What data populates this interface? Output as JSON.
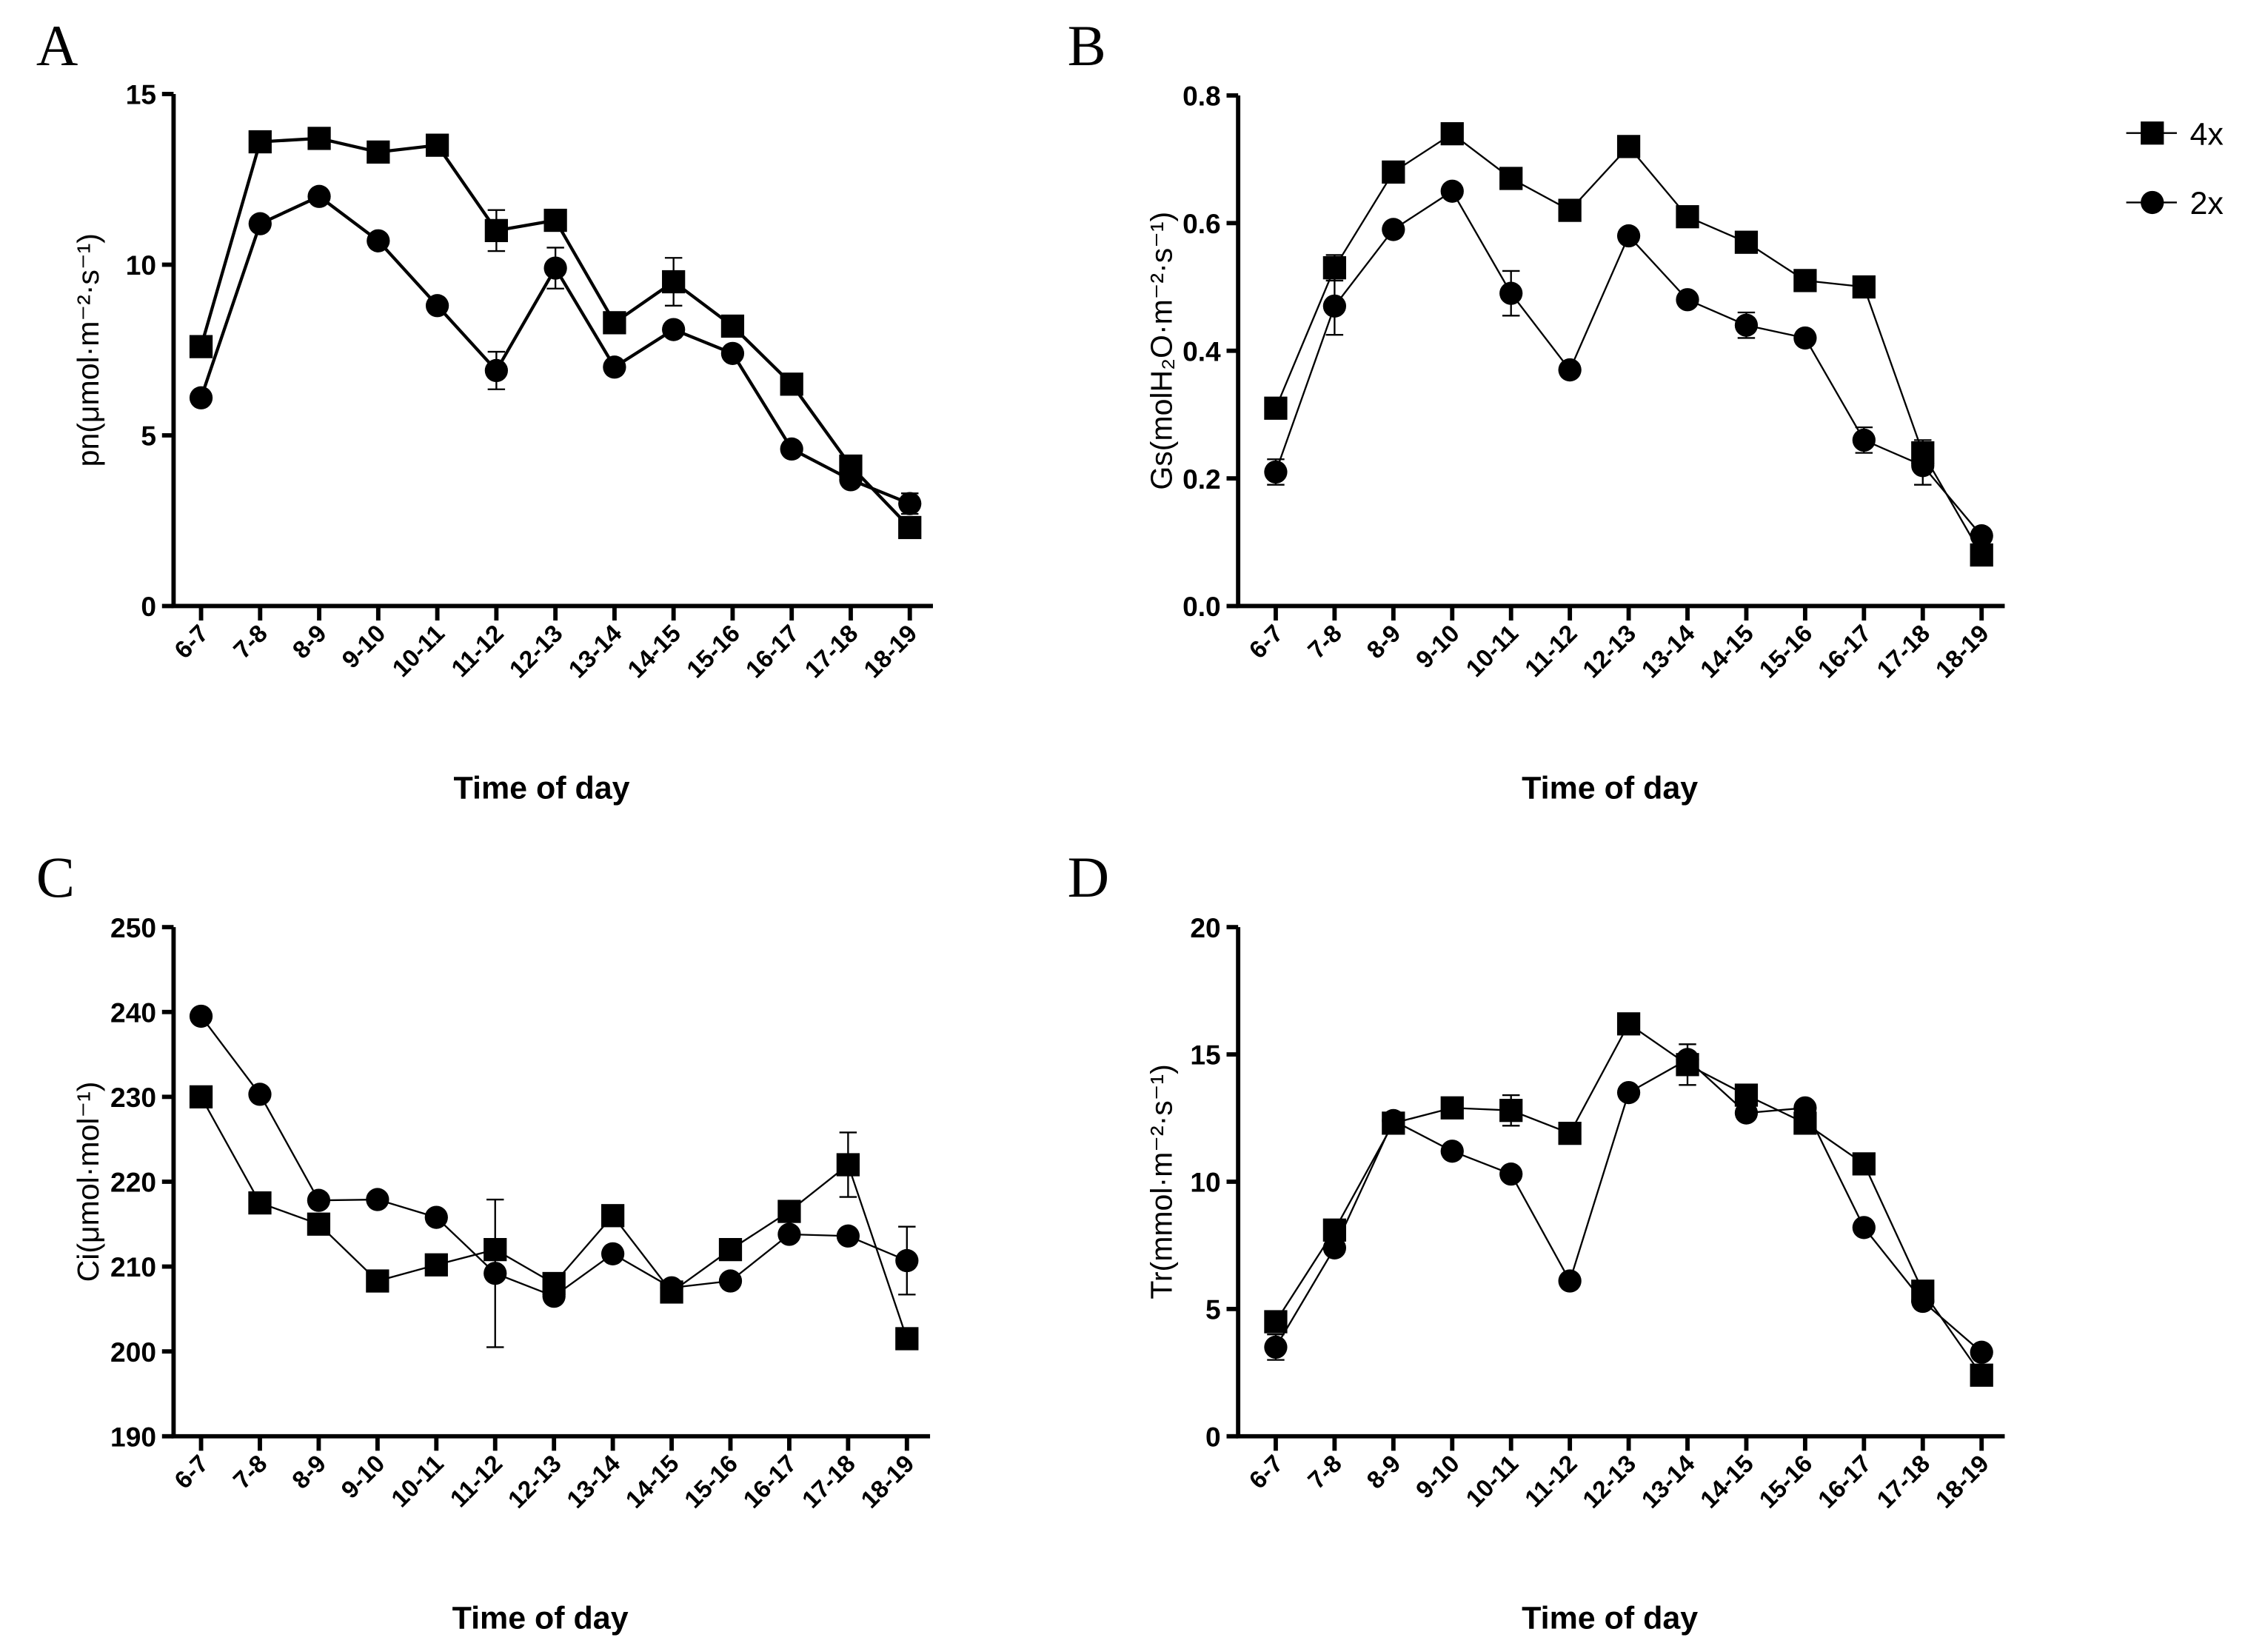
{
  "legend": [
    {
      "name": "4x",
      "marker": "square"
    },
    {
      "name": "2x",
      "marker": "circle"
    }
  ],
  "chart_data": [
    {
      "type": "line",
      "panel": "A",
      "title": "",
      "xlabel": "Time of day",
      "ylabel": "pn(μmol·m⁻²·s⁻¹)",
      "ylim": [
        0,
        15
      ],
      "yticks": [
        0,
        5,
        10,
        15
      ],
      "categories": [
        "6-7",
        "7-8",
        "8-9",
        "9-10",
        "10-11",
        "11-12",
        "12-13",
        "13-14",
        "14-15",
        "15-16",
        "16-17",
        "17-18",
        "18-19"
      ],
      "series": [
        {
          "name": "4x",
          "values": [
            7.6,
            13.6,
            13.7,
            13.3,
            13.5,
            11.0,
            11.3,
            8.3,
            9.5,
            8.2,
            6.5,
            4.1,
            2.3
          ],
          "errors": [
            0,
            0,
            0,
            0,
            0,
            0.6,
            0,
            0,
            0.7,
            0,
            0,
            0.3,
            0
          ]
        },
        {
          "name": "2x",
          "values": [
            6.1,
            11.2,
            12.0,
            10.7,
            8.8,
            6.9,
            9.9,
            7.0,
            8.1,
            7.4,
            4.6,
            3.7,
            3.0
          ],
          "errors": [
            0,
            0,
            0,
            0,
            0,
            0.55,
            0.6,
            0,
            0,
            0,
            0,
            0,
            0.3
          ]
        }
      ]
    },
    {
      "type": "line",
      "panel": "B",
      "title": "",
      "xlabel": "Time of day",
      "ylabel": "Gs(molH₂O·m⁻²·s⁻¹)",
      "ylim": [
        0,
        0.8
      ],
      "yticks": [
        "0.0",
        "0.2",
        "0.4",
        "0.6",
        "0.8"
      ],
      "categories": [
        "6-7",
        "7-8",
        "8-9",
        "9-10",
        "10-11",
        "11-12",
        "12-13",
        "13-14",
        "14-15",
        "15-16",
        "16-17",
        "17-18",
        "18-19"
      ],
      "series": [
        {
          "name": "4x",
          "values": [
            0.31,
            0.53,
            0.68,
            0.74,
            0.67,
            0.62,
            0.72,
            0.61,
            0.57,
            0.51,
            0.5,
            0.24,
            0.08
          ],
          "errors": [
            0,
            0.02,
            0,
            0,
            0,
            0,
            0,
            0,
            0,
            0,
            0,
            0.02,
            0
          ]
        },
        {
          "name": "2x",
          "values": [
            0.21,
            0.47,
            0.59,
            0.65,
            0.49,
            0.37,
            0.58,
            0.48,
            0.44,
            0.42,
            0.26,
            0.22,
            0.11
          ],
          "errors": [
            0.02,
            0.045,
            0,
            0,
            0.035,
            0,
            0,
            0,
            0.02,
            0,
            0.02,
            0.03,
            0
          ]
        }
      ]
    },
    {
      "type": "line",
      "panel": "C",
      "title": "",
      "xlabel": "Time of day",
      "ylabel": "Ci(μmol·mol⁻¹)",
      "ylim": [
        190,
        250
      ],
      "yticks": [
        190,
        200,
        210,
        220,
        230,
        240,
        250
      ],
      "categories": [
        "6-7",
        "7-8",
        "8-9",
        "9-10",
        "10-11",
        "11-12",
        "12-13",
        "13-14",
        "14-15",
        "15-16",
        "16-17",
        "17-18",
        "18-19"
      ],
      "series": [
        {
          "name": "4x",
          "values": [
            230,
            217.5,
            215,
            208.3,
            210.2,
            212,
            208,
            216,
            207,
            212,
            216.5,
            222,
            201.5
          ],
          "errors": [
            0,
            0,
            0,
            0,
            0,
            0,
            0,
            0,
            0,
            0,
            0,
            3.8,
            0
          ]
        },
        {
          "name": "2x",
          "values": [
            239.5,
            230.3,
            217.8,
            217.9,
            215.8,
            209.2,
            206.5,
            211.5,
            207.5,
            208.3,
            213.8,
            213.6,
            210.7
          ],
          "errors": [
            0,
            0,
            0,
            0,
            0,
            8.7,
            0,
            0,
            0,
            0,
            0,
            0,
            4
          ]
        }
      ]
    },
    {
      "type": "line",
      "panel": "D",
      "title": "",
      "xlabel": "Time of day",
      "ylabel": "Tr(mmol·m⁻²·s⁻¹)",
      "ylim": [
        0,
        20
      ],
      "yticks": [
        0,
        5,
        10,
        15,
        20
      ],
      "categories": [
        "6-7",
        "7-8",
        "8-9",
        "9-10",
        "10-11",
        "11-12",
        "12-13",
        "13-14",
        "14-15",
        "15-16",
        "16-17",
        "17-18",
        "18-19"
      ],
      "series": [
        {
          "name": "4x",
          "values": [
            4.5,
            8.1,
            12.3,
            12.9,
            12.8,
            11.9,
            16.2,
            14.6,
            13.4,
            12.3,
            10.7,
            5.7,
            2.4
          ],
          "errors": [
            0,
            0,
            0,
            0,
            0.6,
            0,
            0,
            0.8,
            0,
            0,
            0,
            0,
            0
          ]
        },
        {
          "name": "2x",
          "values": [
            3.5,
            7.4,
            12.4,
            11.2,
            10.3,
            6.1,
            13.5,
            14.8,
            12.7,
            12.9,
            8.2,
            5.3,
            3.3
          ],
          "errors": [
            0.5,
            0,
            0,
            0,
            0,
            0,
            0,
            0,
            0,
            0,
            0,
            0,
            0
          ]
        }
      ]
    }
  ]
}
